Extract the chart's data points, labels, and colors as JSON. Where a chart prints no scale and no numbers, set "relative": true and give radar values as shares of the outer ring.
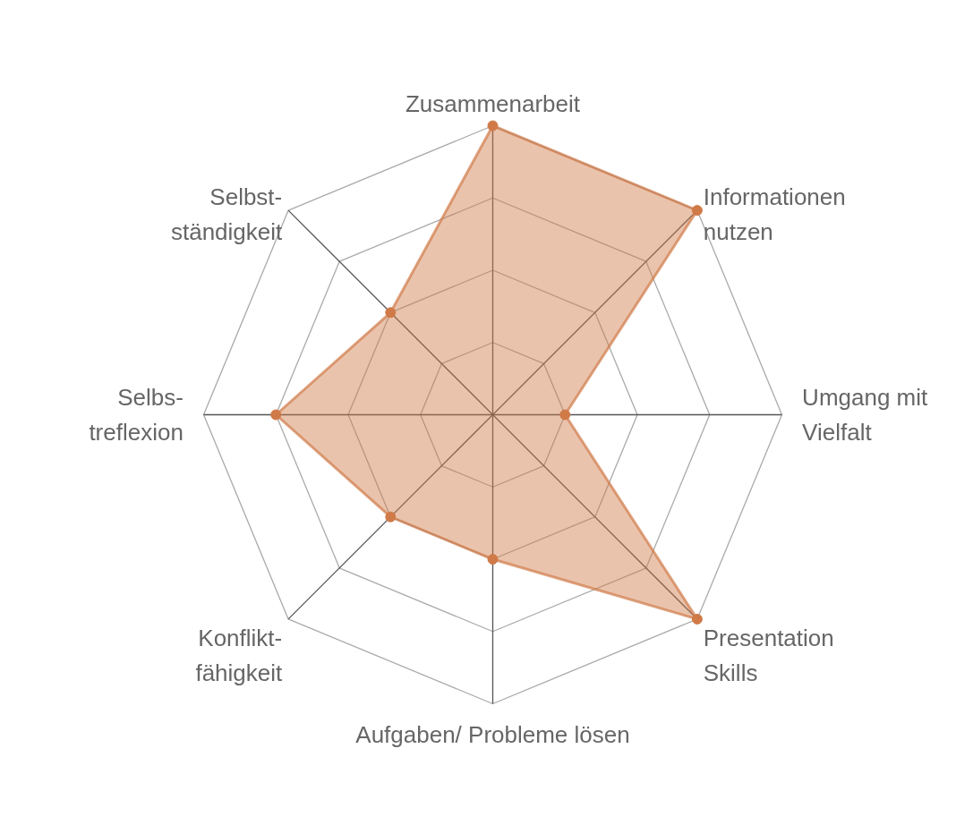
{
  "chart_data": {
    "type": "radar",
    "relative": true,
    "grid": true,
    "marker": "circle",
    "categories": [
      "Zusammenarbeit",
      "Informationen\nnutzen",
      "Umgang mit\nVielfalt",
      "Presentation\nSkills",
      "Aufgaben/ Probleme lösen",
      "Konflikt-\nfähigkeit",
      "Selbs-\ntreflexion",
      "Selbst-\nständigkeit"
    ],
    "series": [
      {
        "color": "#d07a48",
        "values": [
          1.0,
          1.0,
          0.25,
          1.0,
          0.5,
          0.5,
          0.75,
          0.5
        ]
      }
    ]
  }
}
